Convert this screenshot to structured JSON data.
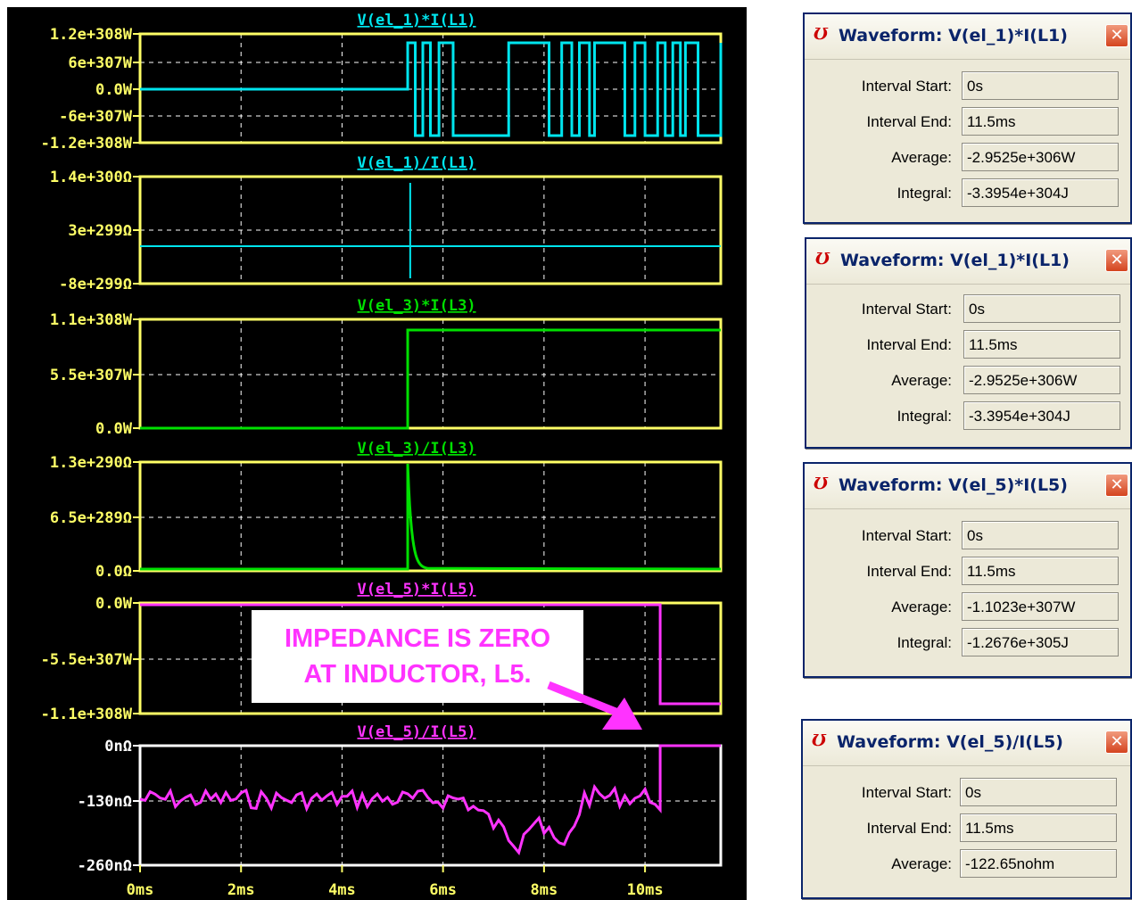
{
  "x_axis": {
    "labels": [
      "0ms",
      "2ms",
      "4ms",
      "6ms",
      "8ms",
      "10ms"
    ],
    "range_ms": [
      0,
      11.5
    ]
  },
  "colors": {
    "frame": "#ffff66",
    "cyan": "#00e5ee",
    "green": "#00e000",
    "magenta": "#ff33ff",
    "white": "#ffffff",
    "background": "#000000"
  },
  "panes": [
    {
      "title": "V(el_1)*I(L1)",
      "color": "#00e5ee",
      "frame": "#ffff66",
      "y_ticks": [
        "1.2e+308W",
        "6e+307W",
        "0.0W",
        "-6e+307W",
        "-1.2e+308W"
      ]
    },
    {
      "title": "V(el_1)/I(L1)",
      "color": "#00e5ee",
      "frame": "#ffff66",
      "y_ticks": [
        "1.4e+300Ω",
        "3e+299Ω",
        "-8e+299Ω"
      ]
    },
    {
      "title": "V(el_3)*I(L3)",
      "color": "#00e000",
      "frame": "#ffff66",
      "y_ticks": [
        "1.1e+308W",
        "5.5e+307W",
        "0.0W"
      ]
    },
    {
      "title": "V(el_3)/I(L3)",
      "color": "#00e000",
      "frame": "#ffff66",
      "y_ticks": [
        "1.3e+290Ω",
        "6.5e+289Ω",
        "0.0Ω"
      ]
    },
    {
      "title": "V(el_5)*I(L5)",
      "color": "#ff33ff",
      "frame": "#ffff66",
      "y_ticks": [
        "0.0W",
        "-5.5e+307W",
        "-1.1e+308W"
      ]
    },
    {
      "title": "V(el_5)/I(L5)",
      "color": "#ff33ff",
      "frame": "#ffffff",
      "y_ticks": [
        "0nΩ",
        "-130nΩ",
        "-260nΩ"
      ]
    }
  ],
  "annotation": {
    "line1": "IMPEDANCE IS ZERO",
    "line2": "AT INDUCTOR, L5."
  },
  "dialogs": [
    {
      "title": "Waveform: V(el_1)*I(L1)",
      "close": "✕",
      "icon": "Ʊ",
      "rows": [
        {
          "label": "Interval Start:",
          "value": "0s"
        },
        {
          "label": "Interval End:",
          "value": "11.5ms"
        },
        {
          "label": "Average:",
          "value": "-2.9525e+306W"
        },
        {
          "label": "Integral:",
          "value": "-3.3954e+304J"
        }
      ]
    },
    {
      "title": "Waveform: V(el_1)*I(L1)",
      "close": "✕",
      "icon": "Ʊ",
      "rows": [
        {
          "label": "Interval Start:",
          "value": "0s"
        },
        {
          "label": "Interval End:",
          "value": "11.5ms"
        },
        {
          "label": "Average:",
          "value": "-2.9525e+306W"
        },
        {
          "label": "Integral:",
          "value": "-3.3954e+304J"
        }
      ]
    },
    {
      "title": "Waveform: V(el_5)*I(L5)",
      "close": "✕",
      "icon": "Ʊ",
      "rows": [
        {
          "label": "Interval Start:",
          "value": "0s"
        },
        {
          "label": "Interval End:",
          "value": "11.5ms"
        },
        {
          "label": "Average:",
          "value": "-1.1023e+307W"
        },
        {
          "label": "Integral:",
          "value": "-1.2676e+305J"
        }
      ]
    },
    {
      "title": "Waveform: V(el_5)/I(L5)",
      "close": "✕",
      "icon": "Ʊ",
      "rows": [
        {
          "label": "Interval Start:",
          "value": "0s"
        },
        {
          "label": "Interval End:",
          "value": "11.5ms"
        },
        {
          "label": "Average:",
          "value": "-122.65nohm"
        }
      ]
    }
  ]
}
